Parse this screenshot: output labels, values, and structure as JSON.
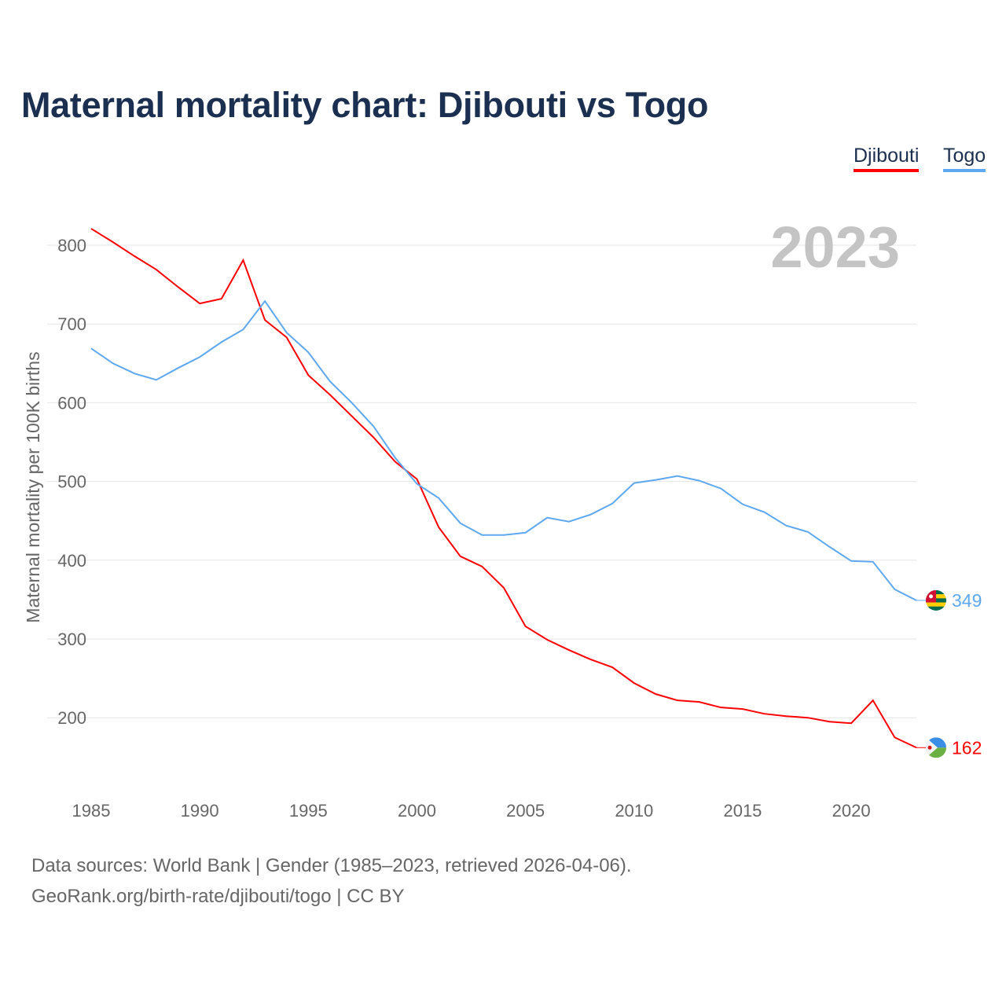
{
  "chart_data": {
    "type": "line",
    "title": "Maternal mortality chart: Djibouti vs Togo",
    "ylabel": "Maternal mortality per 100K births",
    "xlabel": "",
    "year_label": "2023",
    "xlim": [
      1985,
      2023
    ],
    "ylim": [
      120,
      830
    ],
    "xticks": [
      1985,
      1990,
      1995,
      2000,
      2005,
      2010,
      2015,
      2020
    ],
    "yticks": [
      200,
      300,
      400,
      500,
      600,
      700,
      800
    ],
    "grid": true,
    "legend_position": "top-right",
    "x": [
      1985,
      1986,
      1987,
      1988,
      1989,
      1990,
      1991,
      1992,
      1993,
      1994,
      1995,
      1996,
      1997,
      1998,
      1999,
      2000,
      2001,
      2002,
      2003,
      2004,
      2005,
      2006,
      2007,
      2008,
      2009,
      2010,
      2011,
      2012,
      2013,
      2014,
      2015,
      2016,
      2017,
      2018,
      2019,
      2020,
      2021,
      2022,
      2023
    ],
    "series": [
      {
        "name": "Djibouti",
        "color": "#ff0000",
        "end_label": "162",
        "values": [
          821,
          804,
          786,
          769,
          747,
          726,
          732,
          781,
          705,
          683,
          635,
          610,
          583,
          556,
          525,
          503,
          442,
          405,
          392,
          365,
          316,
          299,
          286,
          274,
          264,
          244,
          230,
          222,
          220,
          213,
          211,
          205,
          202,
          200,
          195,
          193,
          222,
          175,
          162
        ]
      },
      {
        "name": "Togo",
        "color": "#5da8f0",
        "end_label": "349",
        "values": [
          669,
          650,
          637,
          629,
          644,
          658,
          677,
          693,
          729,
          689,
          664,
          627,
          600,
          570,
          530,
          497,
          479,
          447,
          432,
          432,
          435,
          454,
          449,
          458,
          472,
          498,
          502,
          507,
          501,
          491,
          471,
          461,
          444,
          436,
          417,
          399,
          398,
          363,
          349
        ]
      }
    ]
  },
  "footer": {
    "line1": "Data sources: World Bank | Gender (1985–2023, retrieved 2026-04-06).",
    "line2": "GeoRank.org/birth-rate/djibouti/togo | CC BY"
  }
}
